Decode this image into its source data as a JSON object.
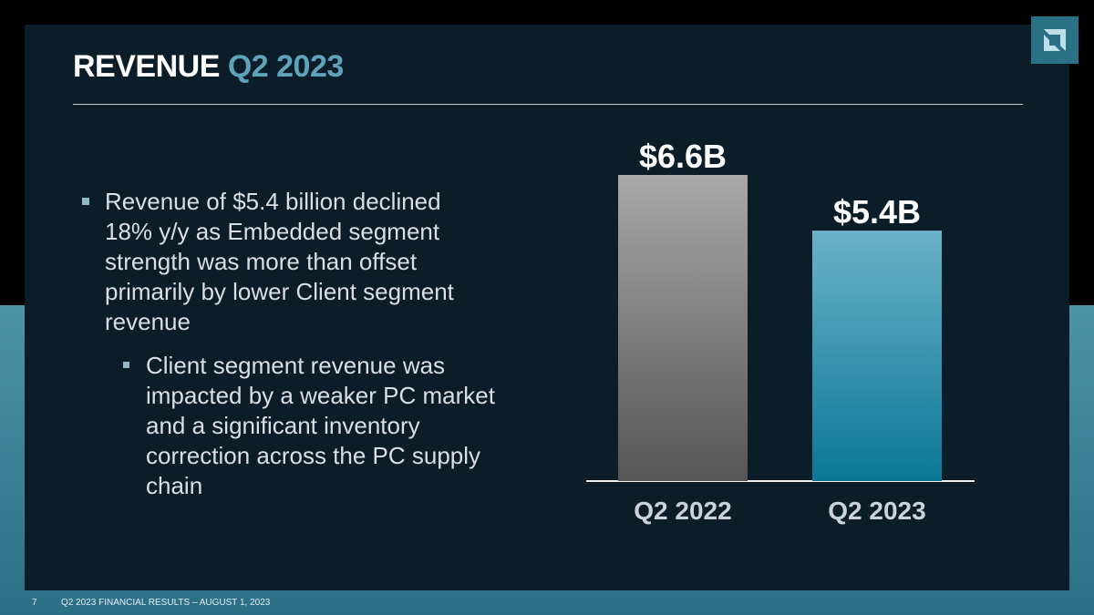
{
  "slide": {
    "title": "REVENUE",
    "title_highlight": "Q2 2023",
    "bullets": [
      {
        "text": "Revenue of $5.4 billion declined 18% y/y as Embedded segment strength was more than offset primarily by lower Client segment revenue",
        "sub_bullets": [
          "Client segment revenue was impacted by a weaker PC market and a significant inventory correction across the PC supply chain"
        ]
      }
    ],
    "page_number": "7",
    "footer": "Q2 2023 FINANCIAL RESULTS – AUGUST 1, 2023"
  },
  "chart_data": {
    "type": "bar",
    "categories": [
      "Q2 2022",
      "Q2 2023"
    ],
    "values": [
      6.6,
      5.4
    ],
    "value_labels": [
      "$6.6B",
      "$5.4B"
    ],
    "colors": [
      "#a8a8a8",
      "#6ab2c8"
    ]
  }
}
